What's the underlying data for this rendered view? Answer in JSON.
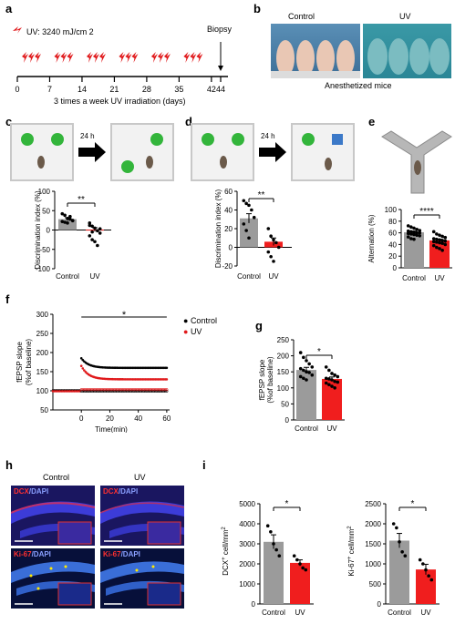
{
  "panels": {
    "a": {
      "label": "a",
      "uv_dose": "UV: 3240 mJ/cm 2",
      "biopsy": "Biopsy",
      "ticks": [
        "0",
        "7",
        "14",
        "21",
        "28",
        "35",
        "42",
        "44"
      ],
      "caption": "3 times a week UV irradiation (days)"
    },
    "b": {
      "label": "b",
      "control": "Control",
      "uv": "UV",
      "caption": "Anesthetized mice"
    },
    "c": {
      "label": "c",
      "arrow_label": "24 h",
      "ylabel": "Discrimination index (%)",
      "yticks": [
        "100",
        "50",
        "0",
        "-50",
        "-100"
      ],
      "xcats": [
        "Control",
        "UV"
      ],
      "sig": "**",
      "chart_data": {
        "type": "bar",
        "categories": [
          "Control",
          "UV"
        ],
        "values": [
          28,
          1
        ],
        "ylim": [
          -100,
          100
        ],
        "points": {
          "Control": [
            42,
            38,
            30,
            28,
            25,
            22,
            20,
            18,
            35,
            24
          ],
          "UV": [
            18,
            10,
            5,
            -2,
            -8,
            -15,
            -25,
            -30,
            -40,
            3,
            12,
            -5
          ]
        }
      }
    },
    "d": {
      "label": "d",
      "arrow_label": "24 h",
      "ylabel": "Discrimination index (%)",
      "yticks": [
        "60",
        "40",
        "20",
        "0",
        "-20"
      ],
      "xcats": [
        "Control",
        "UV"
      ],
      "sig": "**",
      "chart_data": {
        "type": "bar",
        "categories": [
          "Control",
          "UV"
        ],
        "values": [
          31,
          6
        ],
        "ylim": [
          -20,
          60
        ],
        "points": {
          "Control": [
            50,
            47,
            45,
            40,
            32,
            25,
            18,
            10
          ],
          "UV": [
            20,
            12,
            8,
            5,
            0,
            -5,
            -10,
            -15
          ]
        }
      }
    },
    "e": {
      "label": "e",
      "ylabel": "Alternation (%)",
      "yticks": [
        "100",
        "80",
        "60",
        "40",
        "20",
        "0"
      ],
      "xcats": [
        "Control",
        "UV"
      ],
      "sig": "****",
      "chart_data": {
        "type": "bar",
        "categories": [
          "Control",
          "UV"
        ],
        "values": [
          61,
          47
        ],
        "ylim": [
          0,
          100
        ],
        "points": {
          "Control": [
            72,
            70,
            68,
            66,
            64,
            63,
            62,
            61,
            60,
            60,
            59,
            58,
            57,
            56,
            55,
            53,
            50,
            49
          ],
          "UV": [
            62,
            58,
            56,
            54,
            52,
            50,
            49,
            48,
            47,
            46,
            45,
            44,
            43,
            42,
            40,
            38,
            35,
            33,
            30
          ]
        }
      }
    },
    "f": {
      "label": "f",
      "ylabel_line1": "fEPSP slope",
      "ylabel_line2": "(%of baseline)",
      "xlabel": "Time(min)",
      "yticks": [
        "300",
        "250",
        "200",
        "150",
        "100",
        "50"
      ],
      "xticks": [
        "0",
        "20",
        "40",
        "60"
      ],
      "sig": "*",
      "legend_control": "Control",
      "legend_uv": "UV",
      "chart_data": {
        "type": "scatter",
        "xlim": [
          -20,
          62
        ],
        "ylim": [
          50,
          300
        ],
        "series": [
          {
            "name": "Control",
            "color": "#000000",
            "start": 185,
            "plateau": 160
          },
          {
            "name": "UV",
            "color": "#e0191b",
            "start": 165,
            "plateau": 130
          }
        ]
      }
    },
    "g": {
      "label": "g",
      "ylabel_line1": "fEPSP slope",
      "ylabel_line2": "(%of baseline)",
      "yticks": [
        "250",
        "200",
        "150",
        "100",
        "50",
        "0"
      ],
      "xcats": [
        "Control",
        "UV"
      ],
      "sig": "*",
      "chart_data": {
        "type": "bar",
        "categories": [
          "Control",
          "UV"
        ],
        "values": [
          156,
          128
        ],
        "ylim": [
          0,
          250
        ],
        "points": {
          "Control": [
            210,
            195,
            185,
            175,
            165,
            160,
            155,
            150,
            148,
            140,
            135,
            130,
            125
          ],
          "UV": [
            165,
            155,
            145,
            140,
            135,
            130,
            128,
            125,
            120,
            118,
            115,
            110,
            105,
            100
          ]
        }
      }
    },
    "h": {
      "label": "h",
      "control": "Control",
      "uv": "UV",
      "dcx": "DCX",
      "ki67": "Ki-67",
      "dapi": "/DAPI"
    },
    "i": {
      "label": "i",
      "dcx_ylabel": "DCX",
      "ki_ylabel": "Ki-67",
      "ylabel_sup": "+",
      "ylabel_unit": " cell/mm",
      "ylabel_sq": "2",
      "dcx_yticks": [
        "5000",
        "4000",
        "3000",
        "2000",
        "1000",
        "0"
      ],
      "ki_yticks": [
        "2500",
        "2000",
        "1500",
        "1000",
        "500",
        "0"
      ],
      "xcats": [
        "Control",
        "UV"
      ],
      "sig": "*",
      "chart_data": [
        {
          "type": "bar",
          "categories": [
            "Control",
            "UV"
          ],
          "values": [
            3100,
            2050
          ],
          "ylim": [
            0,
            5000
          ],
          "points": {
            "Control": [
              3900,
              3600,
              3000,
              2700,
              2400
            ],
            "UV": [
              2400,
              2200,
              2000,
              1800,
              1700
            ]
          }
        },
        {
          "type": "bar",
          "categories": [
            "Control",
            "UV"
          ],
          "values": [
            1580,
            860
          ],
          "ylim": [
            0,
            2500
          ],
          "points": {
            "Control": [
              2000,
              1900,
              1550,
              1300,
              1200
            ],
            "UV": [
              1100,
              1000,
              850,
              700,
              600
            ]
          }
        }
      ]
    }
  },
  "colors": {
    "control_bar": "#9b9b9b",
    "uv_bar": "#f01e1e",
    "green": "#33b53b",
    "blue": "#3c79c8"
  }
}
